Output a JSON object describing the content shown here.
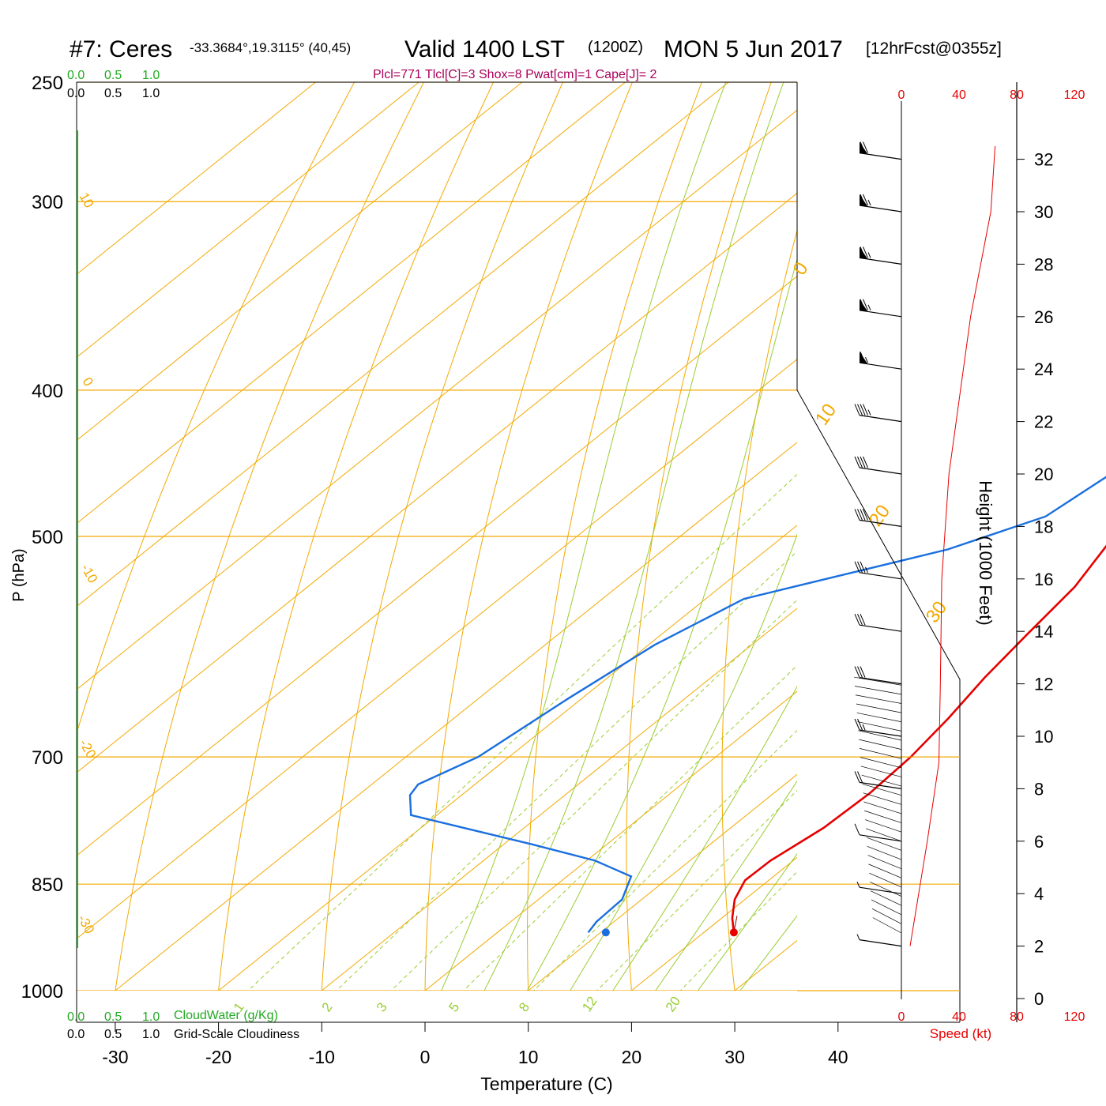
{
  "header": {
    "station": "#7: Ceres",
    "coords": "-33.3684°,19.3115° (40,45)",
    "valid_main": "Valid 1400 LST",
    "valid_z": "(1200Z)",
    "date": "MON 5 Jun 2017",
    "forecast": "[12hrFcst@0355z]",
    "indices": "Plcl=771 Tlcl[C]=3 Shox=8 Pwat[cm]=1 Cape[J]= 2"
  },
  "colors": {
    "isotherm": "#f2a900",
    "mixratio": "#9acd32",
    "temperature": "#e60000",
    "dewpoint": "#1a6fdf",
    "cloud_scale": "#22aa22",
    "speed": "#e60000"
  },
  "chart_data": {
    "type": "skew-t",
    "xlabel": "Temperature (C)",
    "ylabel": "P (hPa)",
    "right_label": "Height (1000 Feet)",
    "x_ticks": [
      "-30",
      "-20",
      "-10",
      "0",
      "10",
      "20",
      "30",
      "40"
    ],
    "x_tick_values": [
      -30,
      -20,
      -10,
      0,
      10,
      20,
      30,
      40
    ],
    "pressure_levels": [
      250,
      300,
      400,
      500,
      700,
      850,
      1000
    ],
    "pressure_labels": [
      "250",
      "300",
      "400",
      "500",
      "700",
      "850",
      "1000"
    ],
    "height_ticks": [
      "0",
      "2",
      "4",
      "6",
      "8",
      "10",
      "12",
      "14",
      "16",
      "18",
      "20",
      "22",
      "24",
      "26",
      "28",
      "30",
      "32"
    ],
    "isotherm_labels": [
      {
        "text": "10"
      },
      {
        "text": "0"
      },
      {
        "text": "-10"
      },
      {
        "text": "-20"
      },
      {
        "text": "-30"
      },
      {
        "text": "0"
      },
      {
        "text": "10"
      },
      {
        "text": "20"
      },
      {
        "text": "30"
      }
    ],
    "mixing_ratio_labels": [
      "1",
      "2",
      "3",
      "5",
      "8",
      "12",
      "20"
    ],
    "temperature_profile": [
      {
        "p": 268,
        "t": -1.2
      },
      {
        "p": 285,
        "t": -1.0
      },
      {
        "p": 315,
        "t": 0.7
      },
      {
        "p": 350,
        "t": 1.9
      },
      {
        "p": 380,
        "t": 3.0
      },
      {
        "p": 410,
        "t": 5.1
      },
      {
        "p": 440,
        "t": 7.5
      },
      {
        "p": 480,
        "t": 10.7
      },
      {
        "p": 500,
        "t": 12.0
      },
      {
        "p": 540,
        "t": 14.3
      },
      {
        "p": 580,
        "t": 15.4
      },
      {
        "p": 620,
        "t": 16.5
      },
      {
        "p": 660,
        "t": 17.9
      },
      {
        "p": 700,
        "t": 18.9
      },
      {
        "p": 740,
        "t": 19.3
      },
      {
        "p": 780,
        "t": 19.0
      },
      {
        "p": 820,
        "t": 17.8
      },
      {
        "p": 845,
        "t": 17.7
      },
      {
        "p": 870,
        "t": 19.0
      },
      {
        "p": 895,
        "t": 21.0
      },
      {
        "p": 915,
        "t": 22.9
      }
    ],
    "dewpoint_profile": [
      {
        "p": 268,
        "t": -14.2
      },
      {
        "p": 285,
        "t": -15.0
      },
      {
        "p": 305,
        "t": -17.2
      },
      {
        "p": 330,
        "t": -18.5
      },
      {
        "p": 350,
        "t": -12.6
      },
      {
        "p": 375,
        "t": -3.8
      },
      {
        "p": 405,
        "t": 1.8
      },
      {
        "p": 440,
        "t": 4.8
      },
      {
        "p": 485,
        "t": 3.0
      },
      {
        "p": 510,
        "t": -2.5
      },
      {
        "p": 550,
        "t": -16.3
      },
      {
        "p": 590,
        "t": -19.4
      },
      {
        "p": 640,
        "t": -21.3
      },
      {
        "p": 700,
        "t": -23.0
      },
      {
        "p": 730,
        "t": -25.5
      },
      {
        "p": 742,
        "t": -25.0
      },
      {
        "p": 765,
        "t": -22.5
      },
      {
        "p": 800,
        "t": -7.2
      },
      {
        "p": 820,
        "t": 0.8
      },
      {
        "p": 840,
        "t": 6.2
      },
      {
        "p": 870,
        "t": 8.1
      },
      {
        "p": 900,
        "t": 8.3
      },
      {
        "p": 915,
        "t": 8.8
      }
    ],
    "surface": {
      "p": 915,
      "t": 22.9,
      "td": 10.5
    },
    "wind_heights_kft": [
      32,
      30,
      28,
      26,
      24,
      22,
      20,
      18,
      16,
      14,
      12,
      10,
      8,
      6,
      4,
      2
    ],
    "wind_speeds_kt": [
      70,
      75,
      75,
      75,
      65,
      45,
      40,
      40,
      35,
      30,
      30,
      25,
      20,
      10,
      8,
      5
    ],
    "speed_profile": [
      {
        "h": 32.5,
        "s": 65
      },
      {
        "h": 30,
        "s": 62
      },
      {
        "h": 26,
        "s": 48
      },
      {
        "h": 20,
        "s": 33
      },
      {
        "h": 16,
        "s": 28
      },
      {
        "h": 12,
        "s": 27
      },
      {
        "h": 9,
        "s": 26
      },
      {
        "h": 6,
        "s": 18
      },
      {
        "h": 4,
        "s": 12
      },
      {
        "h": 2,
        "s": 6
      }
    ]
  },
  "speed_axis": {
    "ticks": [
      "0",
      "40",
      "80",
      "120"
    ],
    "label": "Speed (kt)"
  },
  "cloud_scale": {
    "ticks": [
      "0.0",
      "0.5",
      "1.0"
    ],
    "water_label": "CloudWater (g/Kg)",
    "cover_label": "Grid-Scale Cloudiness"
  }
}
